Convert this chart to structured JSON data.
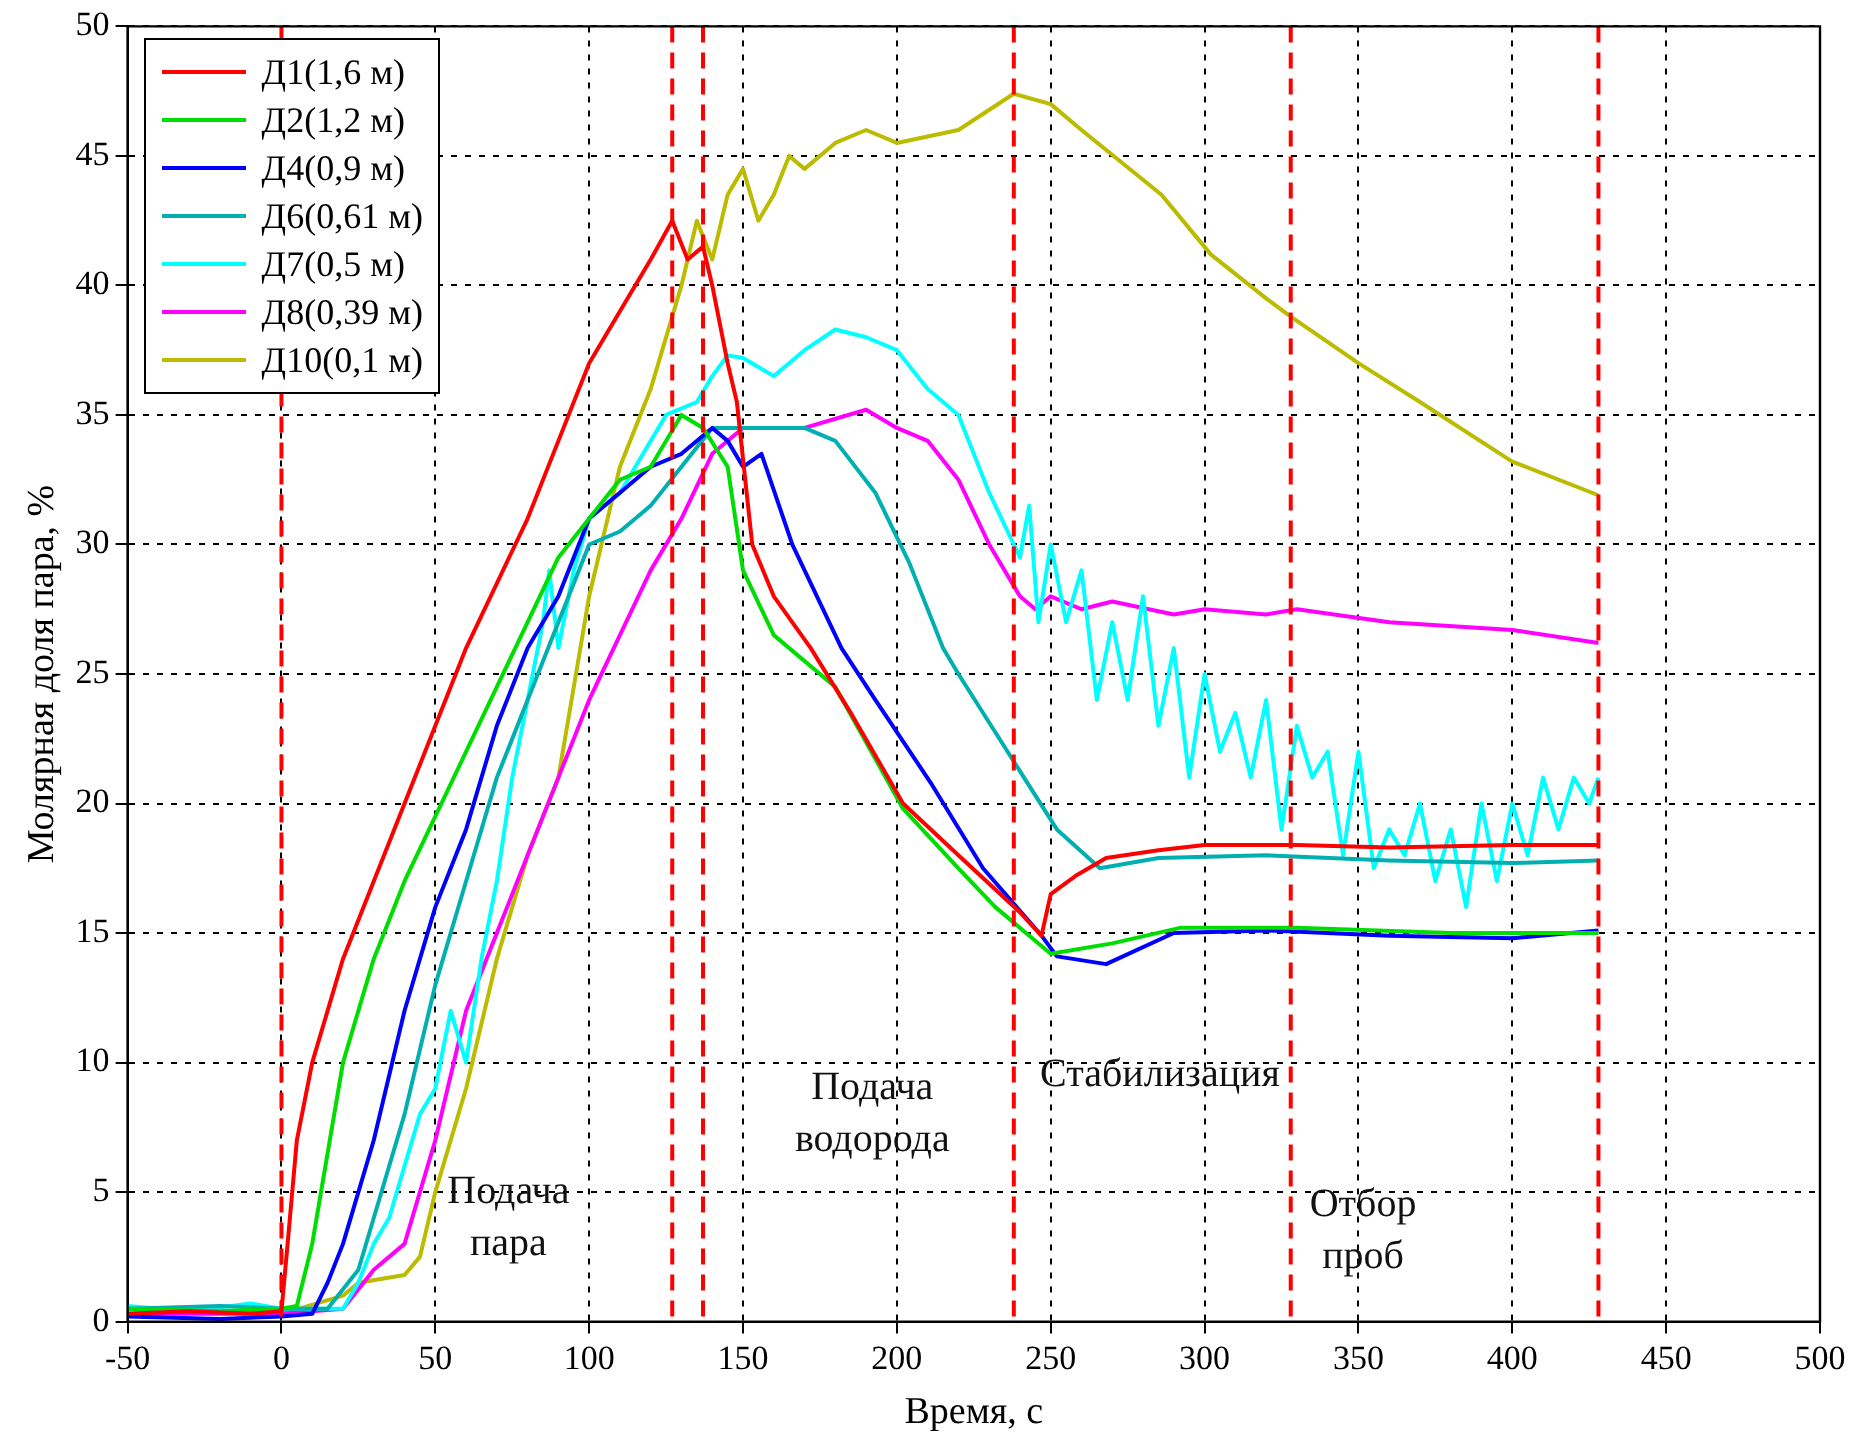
{
  "chart_data": {
    "type": "line",
    "xlabel": "Время, с",
    "ylabel": "Молярная доля пара, %",
    "xlim": [
      -50,
      500
    ],
    "xticks": [
      -50,
      0,
      50,
      100,
      150,
      200,
      250,
      300,
      350,
      400,
      450,
      500
    ],
    "ylim": [
      0,
      50
    ],
    "yticks": [
      0,
      5,
      10,
      15,
      20,
      25,
      30,
      35,
      40,
      45,
      50
    ],
    "grid": true,
    "legend": "top left",
    "line_style": "solid",
    "marker": "none",
    "series": [
      {
        "name": "Д1(1,6 м)",
        "color": "#ff0000",
        "x": [
          -50,
          -30,
          -10,
          0,
          2,
          5,
          10,
          20,
          30,
          40,
          50,
          60,
          70,
          80,
          90,
          100,
          110,
          120,
          127,
          132,
          137,
          140,
          145,
          148,
          153,
          160,
          172,
          185,
          202,
          220,
          240,
          247,
          250,
          258,
          268,
          285,
          300,
          330,
          360,
          400,
          428
        ],
        "values": [
          0.3,
          0.4,
          0.3,
          0.4,
          3,
          7,
          10,
          14,
          17,
          20,
          23,
          26,
          28.5,
          31,
          34,
          37,
          39,
          41,
          42.5,
          41,
          41.5,
          40,
          37,
          35.5,
          30,
          28,
          26,
          23.5,
          20,
          18,
          15.8,
          14.9,
          16.5,
          17.2,
          17.9,
          18.2,
          18.4,
          18.4,
          18.3,
          18.4,
          18.4
        ]
      },
      {
        "name": "Д2(1,2 м)",
        "color": "#00dd00",
        "x": [
          -50,
          -20,
          0,
          5,
          10,
          20,
          30,
          40,
          50,
          60,
          70,
          80,
          90,
          100,
          110,
          120,
          130,
          137,
          145,
          150,
          160,
          180,
          202,
          220,
          232,
          250,
          270,
          292,
          330,
          380,
          428
        ],
        "values": [
          0.5,
          0.4,
          0.5,
          0.6,
          3,
          10,
          14,
          17,
          19.5,
          22,
          24.5,
          27,
          29.5,
          31,
          32.5,
          33,
          35,
          34.5,
          33,
          29,
          26.5,
          24.5,
          19.8,
          17.5,
          16,
          14.2,
          14.6,
          15.2,
          15.2,
          15,
          15
        ]
      },
      {
        "name": "Д4(0,9 м)",
        "color": "#0000ff",
        "x": [
          -50,
          -20,
          0,
          10,
          15,
          20,
          25,
          30,
          40,
          50,
          60,
          70,
          80,
          90,
          100,
          110,
          120,
          130,
          140,
          145,
          150,
          156,
          166,
          182,
          193,
          211,
          228,
          247,
          252,
          268,
          290,
          320,
          360,
          400,
          428
        ],
        "values": [
          0.2,
          0.1,
          0.2,
          0.3,
          1.5,
          3,
          5,
          7,
          12,
          16,
          19,
          23,
          26,
          28,
          31,
          32,
          33,
          33.5,
          34.5,
          34,
          33,
          33.5,
          30,
          26,
          24,
          20.8,
          17.5,
          14.9,
          14.1,
          13.8,
          15,
          15.1,
          14.9,
          14.8,
          15.1
        ]
      },
      {
        "name": "Д6(0,61 м)",
        "color": "#00b0b0",
        "x": [
          -50,
          -20,
          0,
          15,
          25,
          30,
          40,
          50,
          60,
          70,
          80,
          90,
          100,
          110,
          120,
          130,
          140,
          150,
          160,
          170,
          180,
          193,
          204,
          215,
          220,
          236,
          252,
          266,
          285,
          320,
          360,
          400,
          428
        ],
        "values": [
          0.5,
          0.6,
          0.5,
          0.5,
          2,
          4,
          8,
          13,
          17,
          21,
          24,
          27,
          30,
          30.5,
          31.5,
          33,
          34.5,
          34.5,
          34.5,
          34.5,
          34,
          32,
          29.3,
          26,
          25,
          22,
          19,
          17.5,
          17.9,
          18,
          17.8,
          17.7,
          17.8
        ]
      },
      {
        "name": "Д7(0,5 м)",
        "color": "#00ffff",
        "x": [
          -50,
          -30,
          -10,
          0,
          20,
          25,
          30,
          35,
          40,
          45,
          50,
          55,
          60,
          65,
          70,
          75,
          80,
          85,
          87,
          90,
          95,
          100,
          110,
          125,
          135,
          140,
          145,
          150,
          160,
          170,
          180,
          190,
          200,
          210,
          220,
          230,
          240,
          243,
          246,
          250,
          255,
          260,
          265,
          270,
          275,
          280,
          285,
          290,
          295,
          300,
          305,
          310,
          315,
          320,
          325,
          330,
          335,
          340,
          345,
          350,
          355,
          360,
          365,
          370,
          375,
          380,
          385,
          390,
          395,
          400,
          405,
          410,
          415,
          420,
          425,
          428
        ],
        "values": [
          0.6,
          0.4,
          0.7,
          0.5,
          0.5,
          1.5,
          3,
          4,
          6,
          8,
          9,
          12,
          10,
          14,
          17,
          21,
          24,
          27,
          29,
          26,
          29,
          31,
          32,
          35,
          35.5,
          36.5,
          37.3,
          37.2,
          36.5,
          37.5,
          38.3,
          38,
          37.5,
          36,
          35,
          32,
          29.5,
          31.5,
          27,
          30,
          27,
          29,
          24,
          27,
          24,
          28,
          23,
          26,
          21,
          25,
          22,
          23.5,
          21,
          24,
          19,
          23,
          21,
          22,
          18,
          22,
          17.5,
          19,
          18,
          20,
          17,
          19,
          16,
          20,
          17,
          20,
          18,
          21,
          19,
          21,
          20,
          21
        ]
      },
      {
        "name": "Д8(0,39 м)",
        "color": "#ff00ff",
        "x": [
          -50,
          0,
          20,
          30,
          40,
          50,
          60,
          70,
          80,
          90,
          100,
          110,
          120,
          130,
          140,
          150,
          170,
          190,
          200,
          210,
          220,
          230,
          240,
          245,
          250,
          260,
          270,
          290,
          300,
          320,
          330,
          360,
          400,
          428
        ],
        "values": [
          0.3,
          0.3,
          0.5,
          2,
          3,
          7,
          12,
          15,
          18,
          21,
          24,
          26.5,
          29,
          31,
          33.5,
          34.5,
          34.5,
          35.2,
          34.5,
          34,
          32.5,
          30,
          28,
          27.5,
          28,
          27.5,
          27.8,
          27.3,
          27.5,
          27.3,
          27.5,
          27,
          26.7,
          26.2
        ]
      },
      {
        "name": "Д10(0,1 м)",
        "color": "#bbbb00",
        "x": [
          -50,
          -20,
          0,
          20,
          25,
          40,
          45,
          50,
          60,
          70,
          80,
          90,
          100,
          110,
          120,
          130,
          135,
          140,
          145,
          150,
          155,
          160,
          165,
          170,
          180,
          190,
          200,
          220,
          238,
          250,
          260,
          286,
          302,
          320,
          328,
          350,
          370,
          400,
          428
        ],
        "values": [
          0.3,
          0.4,
          0.3,
          1,
          1.5,
          1.8,
          2.5,
          5,
          9,
          14,
          18,
          21,
          28,
          33,
          36,
          40,
          42.5,
          41,
          43.5,
          44.5,
          42.5,
          43.5,
          45,
          44.5,
          45.5,
          46,
          45.5,
          46,
          47.4,
          47,
          46,
          43.5,
          41.2,
          39.5,
          38.8,
          37,
          35.5,
          33.2,
          31.9
        ]
      }
    ],
    "ref_lines": [
      {
        "axis": "x",
        "value": 0,
        "color": "#ff0000",
        "line_style": "dashed"
      },
      {
        "axis": "x",
        "value": 127,
        "color": "#ff0000",
        "line_style": "dashed"
      },
      {
        "axis": "x",
        "value": 137,
        "color": "#ff0000",
        "line_style": "dashed"
      },
      {
        "axis": "x",
        "value": 238,
        "color": "#ff0000",
        "line_style": "dashed"
      },
      {
        "axis": "x",
        "value": 328,
        "color": "#ff0000",
        "line_style": "dashed"
      },
      {
        "axis": "x",
        "value": 428,
        "color": "#ff0000",
        "line_style": "dashed"
      }
    ],
    "annotations": [
      "Подача пара",
      "Подача водорода",
      "Стабилизация",
      "Отбор проб"
    ]
  }
}
